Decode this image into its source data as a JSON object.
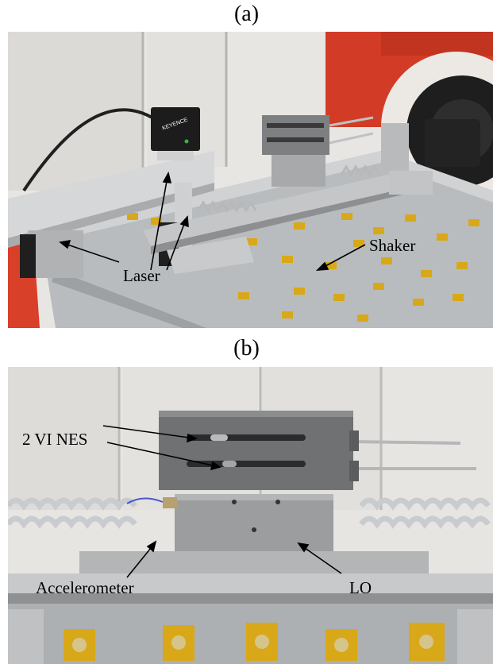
{
  "panel_a": {
    "label": "(a)",
    "annotations": {
      "laser": "Laser",
      "shaker": "Shaker"
    },
    "sensor_brand": "KEYENCE"
  },
  "panel_b": {
    "label": "(b)",
    "annotations": {
      "nes": "2 VI NES",
      "accelerometer": "Accelerometer",
      "lo": "LO"
    }
  },
  "colors": {
    "shaker_table": "#b9bcbe",
    "tape": "#d8a818",
    "spring": "#c9ccce",
    "background_red": "#d8402a"
  }
}
